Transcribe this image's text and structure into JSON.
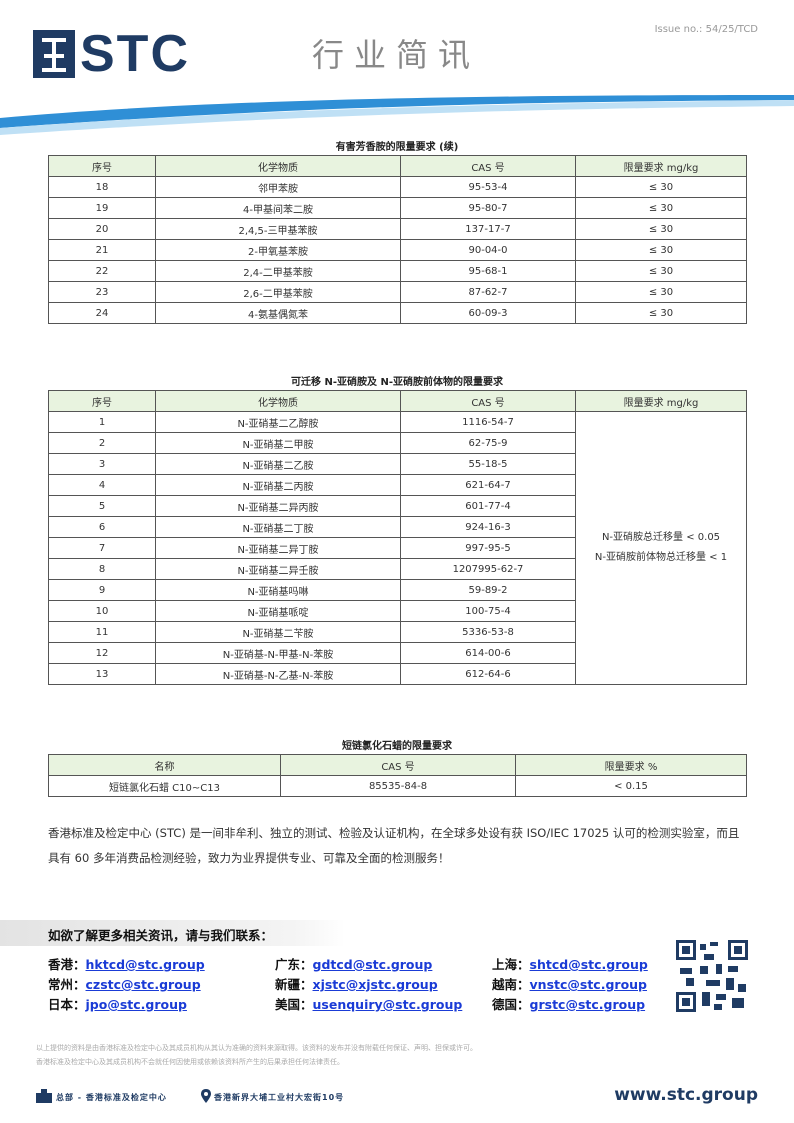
{
  "header": {
    "logo": "STC",
    "title": "行业简讯",
    "issue": "Issue no.: 54/25/TCD"
  },
  "table1": {
    "title": "有害芳香胺的限量要求 (续)",
    "columns": [
      "序号",
      "化学物质",
      "CAS 号",
      "限量要求 mg/kg"
    ],
    "rows": [
      [
        "18",
        "邻甲苯胺",
        "95-53-4",
        "≤ 30"
      ],
      [
        "19",
        "4-甲基间苯二胺",
        "95-80-7",
        "≤ 30"
      ],
      [
        "20",
        "2,4,5-三甲基苯胺",
        "137-17-7",
        "≤ 30"
      ],
      [
        "21",
        "2-甲氧基苯胺",
        "90-04-0",
        "≤ 30"
      ],
      [
        "22",
        "2,4-二甲基苯胺",
        "95-68-1",
        "≤ 30"
      ],
      [
        "23",
        "2,6-二甲基苯胺",
        "87-62-7",
        "≤ 30"
      ],
      [
        "24",
        "4-氨基偶氮苯",
        "60-09-3",
        "≤ 30"
      ]
    ]
  },
  "table2": {
    "title": "可迁移 N-亚硝胺及 N-亚硝胺前体物的限量要求",
    "columns": [
      "序号",
      "化学物质",
      "CAS 号",
      "限量要求 mg/kg"
    ],
    "rows": [
      [
        "1",
        "N-亚硝基二乙醇胺",
        "1116-54-7"
      ],
      [
        "2",
        "N-亚硝基二甲胺",
        "62-75-9"
      ],
      [
        "3",
        "N-亚硝基二乙胺",
        "55-18-5"
      ],
      [
        "4",
        "N-亚硝基二丙胺",
        "621-64-7"
      ],
      [
        "5",
        "N-亚硝基二异丙胺",
        "601-77-4"
      ],
      [
        "6",
        "N-亚硝基二丁胺",
        "924-16-3"
      ],
      [
        "7",
        "N-亚硝基二异丁胺",
        "997-95-5"
      ],
      [
        "8",
        "N-亚硝基二异壬胺",
        "1207995-62-7"
      ],
      [
        "9",
        "N-亚硝基吗啉",
        "59-89-2"
      ],
      [
        "10",
        "N-亚硝基哌啶",
        "100-75-4"
      ],
      [
        "11",
        "N-亚硝基二苄胺",
        "5336-53-8"
      ],
      [
        "12",
        "N-亚硝基-N-甲基-N-苯胺",
        "614-00-6"
      ],
      [
        "13",
        "N-亚硝基-N-乙基-N-苯胺",
        "612-64-6"
      ]
    ],
    "limit": [
      "N-亚硝胺总迁移量 < 0.05",
      "N-亚硝胺前体物总迁移量 < 1"
    ]
  },
  "table3": {
    "title": "短链氯化石蜡的限量要求",
    "columns": [
      "名称",
      "CAS 号",
      "限量要求 %"
    ],
    "rows": [
      [
        "短链氯化石蜡 C10~C13",
        "85535-84-8",
        "< 0.15"
      ]
    ]
  },
  "paragraph": "香港标准及检定中心 (STC) 是一间非牟利、独立的测试、检验及认证机构，在全球多处设有获 ISO/IEC 17025 认可的检测实验室，而且具有 60 多年消费品检测经验，致力为业界提供专业、可靠及全面的检测服务！",
  "contact": {
    "heading": "如欲了解更多相关资讯，请与我们联系：",
    "items": [
      {
        "region": "香港：",
        "email": "hktcd@stc.group"
      },
      {
        "region": "广东：",
        "email": "gdtcd@stc.group"
      },
      {
        "region": "上海：",
        "email": "shtcd@stc.group"
      },
      {
        "region": "常州：",
        "email": "czstc@stc.group"
      },
      {
        "region": "新疆：",
        "email": "xjstc@xjstc.group"
      },
      {
        "region": "越南：",
        "email": "vnstc@stc.group"
      },
      {
        "region": "日本：",
        "email": "jpo@stc.group"
      },
      {
        "region": "美国：",
        "email": "usenquiry@stc.group"
      },
      {
        "region": "德国：",
        "email": "grstc@stc.group"
      }
    ]
  },
  "disclaimer": [
    "以上提供的资料是由香港标准及检定中心及其成员机构从其认为准确的资料来源取得。该资料的发布并没有附载任何保证、声明、担保或许可。",
    "香港标准及检定中心及其成员机构不会就任何因使用或依赖该资料所产生的后果承担任何法律责任。"
  ],
  "footer": {
    "hq": "总部 - 香港标准及检定中心",
    "address": "香港新界大埔工业村大宏街10号",
    "website": "www.stc.group"
  }
}
